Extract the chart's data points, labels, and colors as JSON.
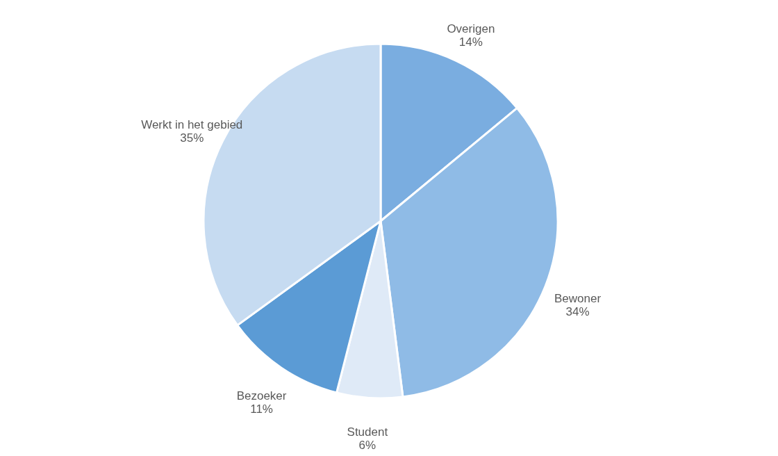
{
  "chart_data": {
    "type": "pie",
    "categories": [
      "Overigen",
      "Bewoner",
      "Student",
      "Bezoeker",
      "Werkt in het gebied"
    ],
    "values": [
      14,
      34,
      6,
      11,
      35
    ],
    "value_labels": [
      "14%",
      "34%",
      "6%",
      "11%",
      "35%"
    ],
    "colors": [
      "#7aade0",
      "#8fbbe6",
      "#dfeaf7",
      "#5b9bd5",
      "#c6dbf1"
    ],
    "legend": false
  }
}
